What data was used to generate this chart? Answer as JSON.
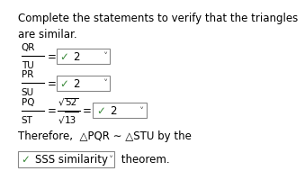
{
  "bg_color": "#ffffff",
  "text_color": "#000000",
  "check_color": "#3a8a3a",
  "box_edge_color": "#888888",
  "title_line1": "Complete the statements to verify that the triangles",
  "title_line2": "are similar.",
  "frac1_num": "QR",
  "frac1_den": "TU",
  "frac2_num": "PR",
  "frac2_den": "SU",
  "frac3_num": "PQ",
  "frac3_den": "ST",
  "sqrt_num": "52",
  "sqrt_den": "13",
  "box_val": "2",
  "therefore_line": "Therefore,  △PQR ∼ △STU by the",
  "similarity_val": "SSS similarity",
  "theorem_suffix": " theorem.",
  "small_fs": 7.5,
  "body_fs": 8.5,
  "check_fs": 8.5,
  "title_fs": 8.5
}
